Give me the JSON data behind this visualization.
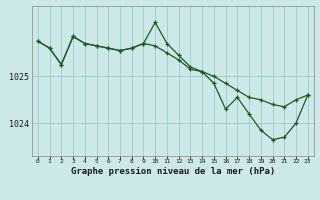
{
  "title": "Graphe pression niveau de la mer (hPa)",
  "background_color": "#cce8e8",
  "line_color": "#1a5c1a",
  "grid_color": "#99cccc",
  "xlim": [
    -0.5,
    23.5
  ],
  "ylim": [
    1023.3,
    1026.45
  ],
  "yticks": [
    1024,
    1025
  ],
  "ytick_labels": [
    "1024",
    "1025"
  ],
  "xtick_labels": [
    "0",
    "1",
    "2",
    "3",
    "4",
    "5",
    "6",
    "7",
    "8",
    "9",
    "10",
    "11",
    "12",
    "13",
    "14",
    "15",
    "16",
    "17",
    "18",
    "19",
    "20",
    "21",
    "22",
    "23"
  ],
  "series1": {
    "x": [
      0,
      1,
      2,
      3,
      4,
      5,
      6,
      7,
      8,
      9,
      10,
      11,
      12,
      13,
      14,
      15,
      16,
      17,
      18,
      19,
      20,
      21,
      22,
      23
    ],
    "y": [
      1025.75,
      1025.6,
      1025.25,
      1025.85,
      1025.7,
      1025.65,
      1025.6,
      1025.55,
      1025.6,
      1025.7,
      1025.65,
      1025.5,
      1025.35,
      1025.15,
      1025.1,
      1025.0,
      1024.85,
      1024.7,
      1024.55,
      1024.5,
      1024.4,
      1024.35,
      1024.5,
      1024.6
    ]
  },
  "series2": {
    "x": [
      0,
      1,
      2,
      3,
      4,
      5,
      6,
      7,
      8,
      9,
      10,
      11,
      12,
      13,
      14,
      15,
      16,
      17,
      18,
      19,
      20,
      21,
      22,
      23
    ],
    "y": [
      1025.75,
      1025.6,
      1025.25,
      1025.85,
      1025.7,
      1025.65,
      1025.6,
      1025.55,
      1025.6,
      1025.7,
      1026.15,
      1025.7,
      1025.45,
      1025.2,
      1025.1,
      1024.85,
      1024.3,
      1024.55,
      1024.2,
      1023.85,
      1023.65,
      1023.7,
      1024.0,
      1024.6
    ]
  }
}
